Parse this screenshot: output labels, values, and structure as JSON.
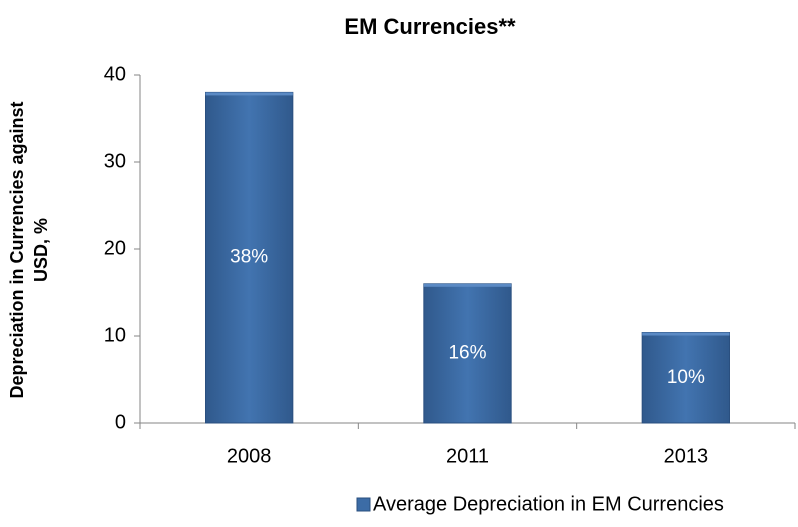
{
  "chart_data": {
    "type": "bar",
    "title": "EM Currencies**",
    "ylabel": [
      "Depreciation in Currencies against",
      "USD, %"
    ],
    "categories": [
      "2008",
      "2011",
      "2013"
    ],
    "series": [
      {
        "name": "Average Depreciation in EM Currencies",
        "color": "#3c6ca6",
        "values": [
          38,
          16,
          10.4
        ],
        "value_labels": [
          "38%",
          "16%",
          "10%"
        ]
      }
    ],
    "ylim": [
      0,
      40
    ],
    "yticks": [
      0,
      10,
      20,
      30,
      40
    ],
    "grid": false,
    "legend": "bottom"
  }
}
